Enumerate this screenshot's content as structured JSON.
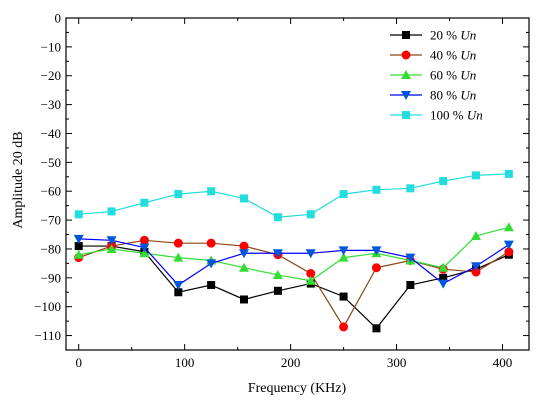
{
  "chart_data": {
    "type": "line",
    "xlabel": "Frequency (KHz)",
    "ylabel": "Amplitude 20 dB",
    "xlim": [
      -12,
      425
    ],
    "ylim": [
      -115,
      0
    ],
    "xticks": [
      0,
      100,
      200,
      300,
      400
    ],
    "yticks": [
      0,
      -10,
      -20,
      -30,
      -40,
      -50,
      -60,
      -70,
      -80,
      -90,
      -100,
      -110
    ],
    "grid": false,
    "legend_position": "top-right",
    "series": [
      {
        "name_prefix": "20 % ",
        "name_unit": "Un",
        "color": "#000000",
        "line_color": "#000000",
        "marker": "square",
        "x": [
          0,
          31,
          62,
          94,
          125,
          156,
          188,
          219,
          250,
          281,
          313,
          344,
          375,
          406
        ],
        "y": [
          -79,
          -79,
          -81,
          -95,
          -92.5,
          -97.5,
          -94.5,
          -92,
          -96.5,
          -107.5,
          -92.5,
          -90,
          -87,
          -82
        ]
      },
      {
        "name_prefix": "40 % ",
        "name_unit": "Un",
        "color": "#ff0000",
        "line_color": "#8b4513",
        "marker": "circle",
        "x": [
          0,
          31,
          62,
          94,
          125,
          156,
          188,
          219,
          250,
          281,
          313,
          344,
          375,
          406
        ],
        "y": [
          -83,
          -79,
          -77,
          -78,
          -78,
          -79,
          -82,
          -88.5,
          -107,
          -86.5,
          -84,
          -87,
          -88,
          -81
        ]
      },
      {
        "name_prefix": "60 % ",
        "name_unit": "Un",
        "color": "#33dd33",
        "line_color": "#33dd33",
        "marker": "triangle-up",
        "x": [
          0,
          31,
          62,
          94,
          125,
          156,
          188,
          219,
          250,
          281,
          313,
          344,
          375,
          406
        ],
        "y": [
          -82,
          -80,
          -81.5,
          -83,
          -84,
          -86.5,
          -89,
          -91,
          -83,
          -81.5,
          -84,
          -86.5,
          -75.5,
          -72.5
        ]
      },
      {
        "name_prefix": "80 % ",
        "name_unit": "Un",
        "color": "#0055dd",
        "line_color": "#0000ff",
        "marker": "triangle-down",
        "x": [
          0,
          31,
          62,
          94,
          125,
          156,
          188,
          219,
          250,
          281,
          313,
          344,
          375,
          406
        ],
        "y": [
          -76.5,
          -77,
          -79.5,
          -92.5,
          -85,
          -81.5,
          -81.5,
          -81.5,
          -80.5,
          -80.5,
          -83,
          -92,
          -86,
          -78.5
        ]
      },
      {
        "name_prefix": "100 % ",
        "name_unit": "Un",
        "color": "#22dddd",
        "line_color": "#22dddd",
        "marker": "square",
        "x": [
          0,
          31,
          62,
          94,
          125,
          156,
          188,
          219,
          250,
          281,
          313,
          344,
          375,
          406
        ],
        "y": [
          -68,
          -67,
          -64,
          -61,
          -60,
          -62.5,
          -69,
          -68,
          -61,
          -59.5,
          -59,
          -56.5,
          -54.5,
          -54
        ]
      }
    ]
  }
}
